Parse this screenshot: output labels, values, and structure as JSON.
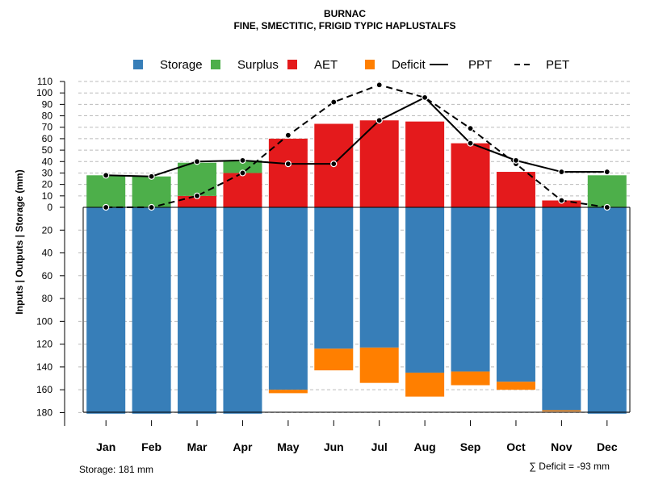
{
  "chart_data": {
    "type": "bar",
    "title": "BURNAC",
    "subtitle": "FINE, SMECTITIC, FRIGID TYPIC HAPLUSTALFS",
    "ylabel": "Inputs | Outputs | Storage     (mm)",
    "categories": [
      "Jan",
      "Feb",
      "Mar",
      "Apr",
      "May",
      "Jun",
      "Jul",
      "Aug",
      "Sep",
      "Oct",
      "Nov",
      "Dec"
    ],
    "y_ticks_upper": [
      0,
      10,
      20,
      30,
      40,
      50,
      60,
      70,
      80,
      90,
      100,
      110
    ],
    "y_ticks_lower": [
      20,
      40,
      60,
      80,
      100,
      120,
      140,
      160,
      180
    ],
    "ylim_upper": [
      0,
      110
    ],
    "ylim_lower": [
      0,
      180
    ],
    "series": [
      {
        "name": "Storage",
        "color": "#377eb8",
        "values": [
          181,
          181,
          181,
          181,
          160,
          124,
          123,
          145,
          144,
          153,
          178,
          181
        ]
      },
      {
        "name": "Surplus",
        "color": "#4daf4a",
        "values": [
          28,
          27,
          29,
          11,
          0,
          0,
          0,
          0,
          0,
          0,
          0,
          28
        ]
      },
      {
        "name": "AET",
        "color": "#e41a1c",
        "values": [
          0,
          0,
          10,
          30,
          60,
          73,
          76,
          75,
          56,
          31,
          6,
          0
        ]
      },
      {
        "name": "Deficit",
        "color": "#ff7f00",
        "values": [
          0,
          0,
          0,
          0,
          3,
          19,
          31,
          21,
          12,
          7,
          1,
          0
        ]
      },
      {
        "name": "PPT",
        "color": "#000000",
        "line_style": "solid",
        "values": [
          28,
          27,
          40,
          41,
          38,
          38,
          76,
          96,
          56,
          41,
          31,
          31
        ]
      },
      {
        "name": "PET",
        "color": "#000000",
        "line_style": "dashed",
        "values": [
          0,
          0,
          10,
          30,
          63,
          92,
          107,
          96,
          69,
          38,
          6,
          0
        ]
      }
    ],
    "legend": [
      "Storage",
      "Surplus",
      "AET",
      "Deficit",
      "PPT",
      "PET"
    ],
    "legend_position": "top",
    "grid": true,
    "storage_note": "Storage: 181 mm",
    "deficit_note": "∑ Deficit = -93 mm"
  }
}
